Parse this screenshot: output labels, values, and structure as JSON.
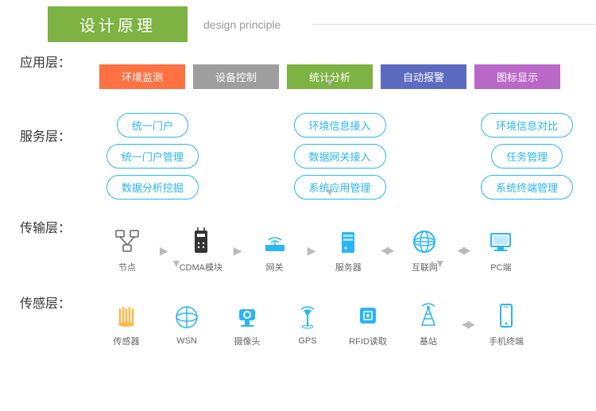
{
  "header": {
    "title_zh": "设计原理",
    "title_en": "design principle"
  },
  "layers": {
    "app": "应用层：",
    "service": "服务层：",
    "transport": "传输层：",
    "sensor": "传感层："
  },
  "app_boxes": [
    {
      "label": "环境监测",
      "color": "#ff7043"
    },
    {
      "label": "设备控制",
      "color": "#9e9e9e"
    },
    {
      "label": "统计分析",
      "color": "#7cb342"
    },
    {
      "label": "自动报警",
      "color": "#5c6bc0"
    },
    {
      "label": "图标显示",
      "color": "#ba68c8"
    }
  ],
  "service_cols": [
    [
      "统一门户",
      "统一门户管理",
      "数据分析挖掘"
    ],
    [
      "环境信息接入",
      "数据网关接入",
      "系统应用管理"
    ],
    [
      "环境信息对比",
      "任务管理",
      "系统终端管理"
    ]
  ],
  "transport_items": [
    {
      "label": "节点",
      "icon": "node"
    },
    {
      "label": "CDMA模块",
      "icon": "cdma"
    },
    {
      "label": "网关",
      "icon": "gateway"
    },
    {
      "label": "服务器",
      "icon": "server"
    },
    {
      "label": "互联网",
      "icon": "internet"
    },
    {
      "label": "PC端",
      "icon": "pc"
    }
  ],
  "sensor_items": [
    {
      "label": "传感器",
      "icon": "sensor"
    },
    {
      "label": "WSN",
      "icon": "wsn"
    },
    {
      "label": "摄像头",
      "icon": "camera"
    },
    {
      "label": "GPS",
      "icon": "gps"
    },
    {
      "label": "RFID读取",
      "icon": "rfid"
    },
    {
      "label": "基站",
      "icon": "station"
    },
    {
      "label": "手机终端",
      "icon": "phone"
    }
  ],
  "colors": {
    "icon_blue": "#29b6f6",
    "icon_orange": "#ffb74d",
    "arrow": "#bbbbbb"
  }
}
